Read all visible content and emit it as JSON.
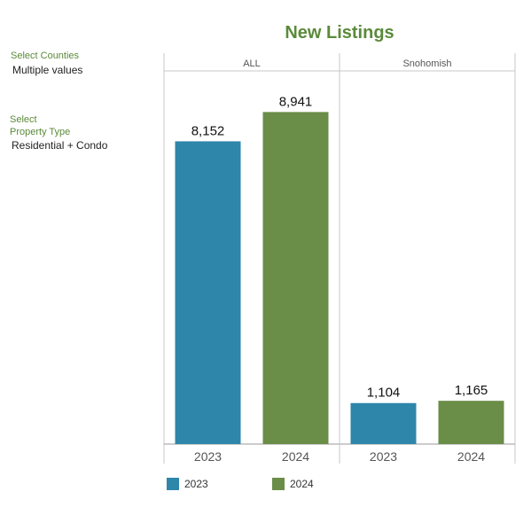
{
  "filters": {
    "counties": {
      "label": "Select Counties",
      "value": "Multiple values"
    },
    "property_type": {
      "label_line1": "Select",
      "label_line2": "Property Type",
      "value": "Residential + Condo"
    }
  },
  "colors": {
    "2023": "#2e86ab",
    "2024": "#6a8d47"
  },
  "chart_data": {
    "type": "bar",
    "title": "New Listings",
    "panels": [
      "ALL",
      "Snohomish"
    ],
    "categories": [
      "2023",
      "2024"
    ],
    "series": [
      {
        "panel": "ALL",
        "values": [
          8152,
          8941
        ],
        "labels": [
          "8,152",
          "8,941"
        ]
      },
      {
        "panel": "Snohomish",
        "values": [
          1104,
          1165
        ],
        "labels": [
          "1,104",
          "1,165"
        ]
      }
    ],
    "legend": [
      "2023",
      "2024"
    ],
    "legend_position": "bottom-left",
    "ylim": [
      0,
      9400
    ],
    "grid": false
  }
}
